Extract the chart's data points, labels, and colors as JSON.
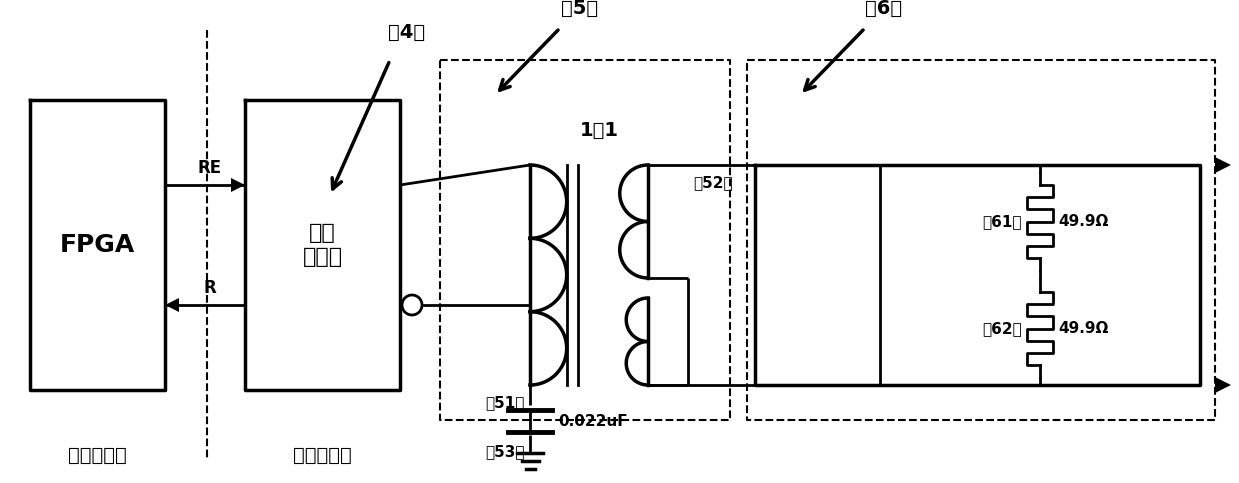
{
  "bg_color": "#ffffff",
  "line_color": "#000000",
  "fpga_label": "FPGA",
  "bus_label": "总线\n收发器",
  "link_label": "链路层设计",
  "phy_label": "物理层设计",
  "re_label": "RE",
  "r_label": "R",
  "label_4": "（4）",
  "label_5": "（5）",
  "label_6": "（6）",
  "label_51": "（51）",
  "label_52": "（52）",
  "label_53": "（53）",
  "label_61": "（61）",
  "label_62": "（62）",
  "ratio_label": "1：1",
  "cap_label": "0.022uF",
  "res1_label": "49.9Ω",
  "res2_label": "49.9Ω"
}
